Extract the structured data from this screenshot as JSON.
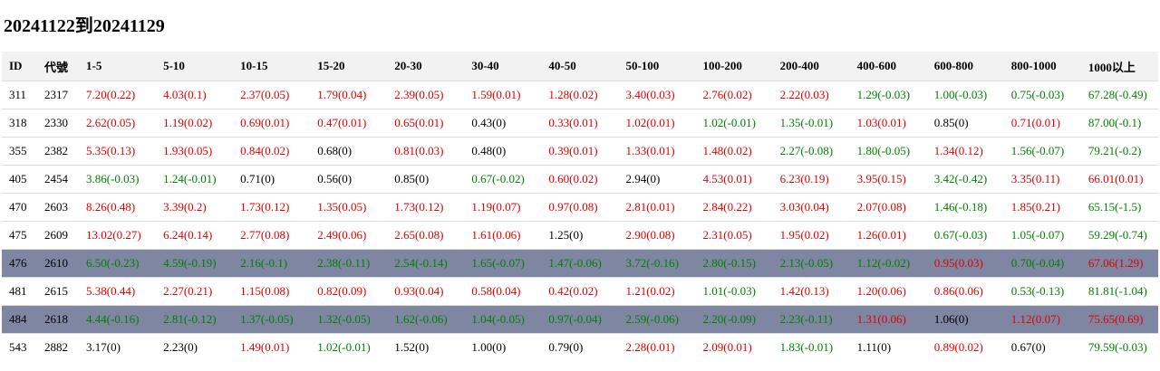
{
  "header": {
    "title": "20241122到20241129"
  },
  "table": {
    "columns": [
      "ID",
      "代號",
      "1-5",
      "5-10",
      "10-15",
      "15-20",
      "20-30",
      "30-40",
      "40-50",
      "50-100",
      "100-200",
      "200-400",
      "400-600",
      "600-800",
      "800-1000",
      "1000以上"
    ],
    "highlighted_rows": [
      6,
      8
    ],
    "rows": [
      [
        "311",
        "2317",
        "7.20(0.22)",
        "4.03(0.1)",
        "2.37(0.05)",
        "1.79(0.04)",
        "2.39(0.05)",
        "1.59(0.01)",
        "1.28(0.02)",
        "3.40(0.03)",
        "2.76(0.02)",
        "2.22(0.03)",
        "1.29(-0.03)",
        "1.00(-0.03)",
        "0.75(-0.03)",
        "67.28(-0.49)"
      ],
      [
        "318",
        "2330",
        "2.62(0.05)",
        "1.19(0.02)",
        "0.69(0.01)",
        "0.47(0.01)",
        "0.65(0.01)",
        "0.43(0)",
        "0.33(0.01)",
        "1.02(0.01)",
        "1.02(-0.01)",
        "1.35(-0.01)",
        "1.03(0.01)",
        "0.85(0)",
        "0.71(0.01)",
        "87.00(-0.1)"
      ],
      [
        "355",
        "2382",
        "5.35(0.13)",
        "1.93(0.05)",
        "0.84(0.02)",
        "0.68(0)",
        "0.81(0.03)",
        "0.48(0)",
        "0.39(0.01)",
        "1.33(0.01)",
        "1.48(0.02)",
        "2.27(-0.08)",
        "1.80(-0.05)",
        "1.34(0.12)",
        "1.56(-0.07)",
        "79.21(-0.2)"
      ],
      [
        "405",
        "2454",
        "3.86(-0.03)",
        "1.24(-0.01)",
        "0.71(0)",
        "0.56(0)",
        "0.85(0)",
        "0.67(-0.02)",
        "0.60(0.02)",
        "2.94(0)",
        "4.53(0.01)",
        "6.23(0.19)",
        "3.95(0.15)",
        "3.42(-0.42)",
        "3.35(0.11)",
        "66.01(0.01)"
      ],
      [
        "470",
        "2603",
        "8.26(0.48)",
        "3.39(0.2)",
        "1.73(0.12)",
        "1.35(0.05)",
        "1.73(0.12)",
        "1.19(0.07)",
        "0.97(0.08)",
        "2.81(0.01)",
        "2.84(0.22)",
        "3.03(0.04)",
        "2.07(0.08)",
        "1.46(-0.18)",
        "1.85(0.21)",
        "65.15(-1.5)"
      ],
      [
        "475",
        "2609",
        "13.02(0.27)",
        "6.24(0.14)",
        "2.77(0.08)",
        "2.49(0.06)",
        "2.65(0.08)",
        "1.61(0.06)",
        "1.25(0)",
        "2.90(0.08)",
        "2.31(0.05)",
        "1.95(0.02)",
        "1.26(0.01)",
        "0.67(-0.03)",
        "1.05(-0.07)",
        "59.29(-0.74)"
      ],
      [
        "476",
        "2610",
        "6.50(-0.23)",
        "4.59(-0.19)",
        "2.16(-0.1)",
        "2.38(-0.11)",
        "2.54(-0.14)",
        "1.65(-0.07)",
        "1.47(-0.06)",
        "3.72(-0.16)",
        "2.80(-0.15)",
        "2.13(-0.05)",
        "1.12(-0.02)",
        "0.95(0.03)",
        "0.70(-0.04)",
        "67.06(1.29)"
      ],
      [
        "481",
        "2615",
        "5.38(0.44)",
        "2.27(0.21)",
        "1.15(0.08)",
        "0.82(0.09)",
        "0.93(0.04)",
        "0.58(0.04)",
        "0.42(0.02)",
        "1.21(0.02)",
        "1.01(-0.03)",
        "1.42(0.13)",
        "1.20(0.06)",
        "0.86(0.06)",
        "0.53(-0.13)",
        "81.81(-1.04)"
      ],
      [
        "484",
        "2618",
        "4.44(-0.16)",
        "2.81(-0.12)",
        "1.37(-0.05)",
        "1.32(-0.05)",
        "1.62(-0.06)",
        "1.04(-0.05)",
        "0.97(-0.04)",
        "2.59(-0.06)",
        "2.20(-0.09)",
        "2.23(-0.11)",
        "1.31(0.06)",
        "1.06(0)",
        "1.12(0.07)",
        "75.65(0.69)"
      ],
      [
        "543",
        "2882",
        "3.17(0)",
        "2.23(0)",
        "1.49(0.01)",
        "1.02(-0.01)",
        "1.52(0)",
        "1.00(0)",
        "0.79(0)",
        "2.28(0.01)",
        "2.09(0.01)",
        "1.83(-0.01)",
        "1.11(0)",
        "0.89(0.02)",
        "0.67(0)",
        "79.59(-0.03)"
      ]
    ]
  }
}
